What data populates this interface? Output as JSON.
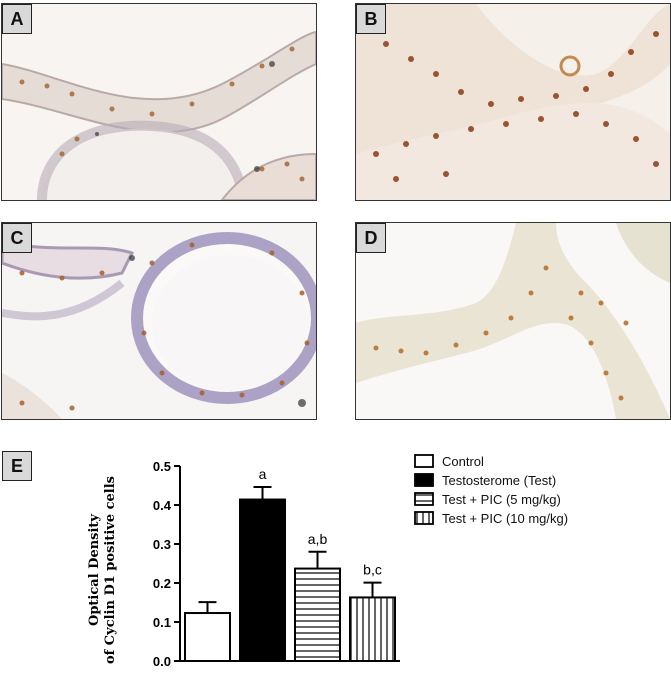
{
  "panels": [
    {
      "label": "A"
    },
    {
      "label": "B"
    },
    {
      "label": "C"
    },
    {
      "label": "D"
    },
    {
      "label": "E"
    }
  ],
  "chart_data": {
    "type": "bar",
    "categories": [
      "Control",
      "Testosterome (Test)",
      "Test + PIC (5 mg/kg)",
      "Test + PIC (10 mg/kg)"
    ],
    "values": [
      0.123,
      0.414,
      0.237,
      0.163
    ],
    "errors": [
      0.028,
      0.032,
      0.043,
      0.038
    ],
    "annotations": [
      "",
      "a",
      "a,b",
      "b,c"
    ],
    "fills": [
      "white",
      "solid-black",
      "horizontal-stripes",
      "vertical-stripes"
    ],
    "ylabel_line1": "Optical Density",
    "ylabel_line2": "of Cyclin D1 positive cells",
    "ylim": [
      0.0,
      0.5
    ],
    "yticks": [
      "0.0",
      "0.1",
      "0.2",
      "0.3",
      "0.4",
      "0.5"
    ],
    "legend_position": "top-right",
    "colors": {
      "bar_stroke": "#000000",
      "bar_fill": "#ffffff",
      "solid": "#000000"
    }
  }
}
